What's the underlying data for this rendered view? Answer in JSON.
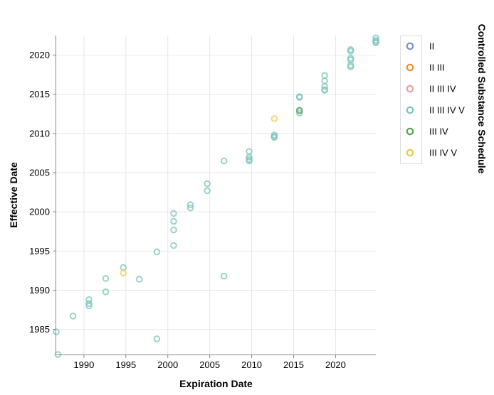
{
  "chart_data": {
    "type": "scatter",
    "xlabel": "Expiration Date",
    "ylabel": "Effective Date",
    "xlim": [
      1986.7,
      2024.8
    ],
    "ylim": [
      1981.8,
      2022.5
    ],
    "x_ticks": [
      "1990",
      "1995",
      "2000",
      "2005",
      "2010",
      "2015",
      "2020"
    ],
    "y_ticks": [
      "1985",
      "1990",
      "1995",
      "2000",
      "2005",
      "2010",
      "2015",
      "2020"
    ],
    "grid": true,
    "legend": {
      "title": "Controlled Substance Schedule",
      "placement": "right"
    },
    "series": [
      {
        "name": "II",
        "color": "#7b92c9",
        "points": []
      },
      {
        "name": "II III",
        "color": "#f28e2b",
        "points": []
      },
      {
        "name": "II III IV",
        "color": "#e8a0a4",
        "points": []
      },
      {
        "name": "II III IV V",
        "color": "#79c4bc",
        "points": [
          [
            1986.7,
            1984.7
          ],
          [
            1986.9,
            1981.8
          ],
          [
            1988.7,
            1986.7
          ],
          [
            1990.6,
            1988.8
          ],
          [
            1990.6,
            1988.3
          ],
          [
            1990.6,
            1988.0
          ],
          [
            1992.6,
            1991.5
          ],
          [
            1992.6,
            1989.8
          ],
          [
            1994.7,
            1992.9
          ],
          [
            1996.6,
            1991.4
          ],
          [
            1998.7,
            1994.9
          ],
          [
            1998.7,
            1983.8
          ],
          [
            2000.7,
            1999.8
          ],
          [
            2000.7,
            1998.8
          ],
          [
            2000.7,
            1997.7
          ],
          [
            2000.7,
            1995.7
          ],
          [
            2002.7,
            2000.9
          ],
          [
            2002.7,
            2000.5
          ],
          [
            2004.7,
            2003.6
          ],
          [
            2004.7,
            2002.7
          ],
          [
            2006.7,
            2006.5
          ],
          [
            2006.7,
            1991.8
          ],
          [
            2009.7,
            2007.7
          ],
          [
            2009.7,
            2007.0
          ],
          [
            2009.7,
            2006.7
          ],
          [
            2009.7,
            2006.5
          ],
          [
            2012.7,
            2009.8
          ],
          [
            2012.7,
            2009.6
          ],
          [
            2012.7,
            2009.5
          ],
          [
            2015.7,
            2014.7
          ],
          [
            2015.7,
            2014.6
          ],
          [
            2015.7,
            2013.0
          ],
          [
            2015.7,
            2012.6
          ],
          [
            2018.7,
            2017.4
          ],
          [
            2018.7,
            2016.7
          ],
          [
            2018.7,
            2016.0
          ],
          [
            2018.7,
            2015.6
          ],
          [
            2018.7,
            2015.5
          ],
          [
            2021.8,
            2020.7
          ],
          [
            2021.8,
            2020.5
          ],
          [
            2021.8,
            2019.6
          ],
          [
            2021.8,
            2019.4
          ],
          [
            2021.8,
            2018.7
          ],
          [
            2021.8,
            2018.5
          ],
          [
            2024.8,
            2022.2
          ],
          [
            2024.8,
            2021.9
          ],
          [
            2024.8,
            2021.7
          ],
          [
            2024.8,
            2021.6
          ]
        ]
      },
      {
        "name": "III IV",
        "color": "#59a14f",
        "points": [
          [
            2015.7,
            2012.9
          ]
        ]
      },
      {
        "name": "III IV V",
        "color": "#edc949",
        "points": [
          [
            1994.7,
            1992.2
          ],
          [
            2012.7,
            2011.9
          ]
        ]
      }
    ]
  }
}
